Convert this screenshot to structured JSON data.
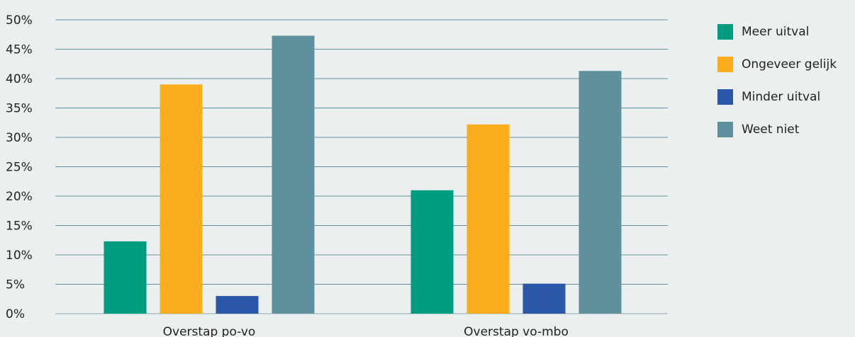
{
  "chart_data": {
    "type": "bar",
    "categories": [
      "Overstap po-vo",
      "Overstap vo-mbo"
    ],
    "series": [
      {
        "name": "Meer uitval",
        "color": "#009c80",
        "values": [
          12.3,
          21.0
        ]
      },
      {
        "name": "Ongeveer gelijk",
        "color": "#f9ac1c",
        "values": [
          39.0,
          32.2
        ]
      },
      {
        "name": "Minder uitval",
        "color": "#2a57a8",
        "values": [
          3.0,
          5.1
        ]
      },
      {
        "name": "Weet niet",
        "color": "#5f919d",
        "values": [
          47.3,
          41.3
        ]
      }
    ],
    "ylim": [
      0,
      50
    ],
    "yticks": [
      0,
      5,
      10,
      15,
      20,
      25,
      30,
      35,
      40,
      45,
      50
    ],
    "ytick_labels": [
      "0%",
      "5%",
      "10%",
      "15%",
      "20%",
      "25%",
      "30%",
      "35%",
      "40%",
      "45%",
      "50%"
    ],
    "grid": true,
    "gridline_color": "#5f919d",
    "legend_position": "right"
  }
}
